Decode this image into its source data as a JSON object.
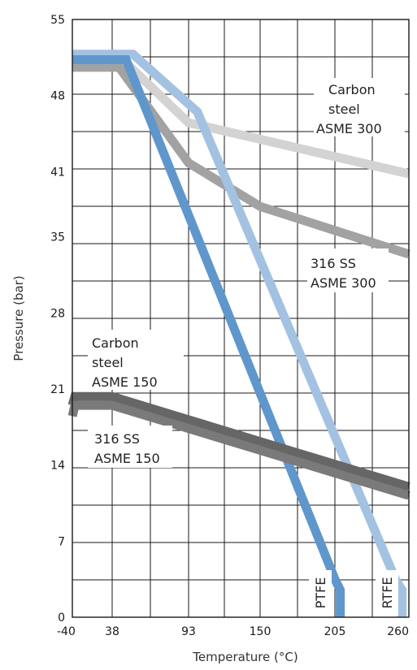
{
  "chart_data": {
    "type": "line",
    "xlabel": "Temperature (°C)",
    "ylabel": "Pressure (bar)",
    "x_ticks": [
      "-40",
      "38",
      "93",
      "150",
      "205",
      "260"
    ],
    "y_ticks": [
      "0",
      "7",
      "14",
      "21",
      "28",
      "35",
      "41",
      "48",
      "55"
    ],
    "xlim": [
      -40,
      260
    ],
    "ylim": [
      0,
      55
    ],
    "grid": true,
    "series": [
      {
        "name": "Carbon steel ASME 300",
        "color": "#d3d3d3",
        "points": [
          [
            -40,
            51
          ],
          [
            48,
            51
          ],
          [
            93,
            45.5
          ],
          [
            260,
            40.8
          ]
        ]
      },
      {
        "name": "316 SS ASME 300",
        "color": "#a2a2a2",
        "points": [
          [
            -40,
            50.6
          ],
          [
            43,
            50.6
          ],
          [
            93,
            41.8
          ],
          [
            150,
            37.8
          ],
          [
            260,
            33.4
          ]
        ]
      },
      {
        "name": "RTFE",
        "color": "#a3c2e2",
        "points": [
          [
            -40,
            51.8
          ],
          [
            53,
            51.8
          ],
          [
            100,
            46.5
          ],
          [
            250,
            3.5
          ],
          [
            255,
            2.5
          ],
          [
            255,
            0
          ]
        ]
      },
      {
        "name": "PTFE",
        "color": "#5f97cc",
        "points": [
          [
            -40,
            51.3
          ],
          [
            48,
            51.3
          ],
          [
            205,
            3.5
          ],
          [
            209,
            2.5
          ],
          [
            209,
            0
          ]
        ]
      },
      {
        "name": "Carbon steel ASME 150",
        "color": "#666666",
        "points": [
          [
            -40,
            19.5
          ],
          [
            -35,
            20.3
          ],
          [
            38,
            20.3
          ],
          [
            260,
            12
          ]
        ]
      },
      {
        "name": "316 SS ASME 150",
        "color": "#7a7a7a",
        "points": [
          [
            -40,
            18.5
          ],
          [
            -35,
            19.5
          ],
          [
            38,
            19.5
          ],
          [
            260,
            11.2
          ]
        ]
      }
    ],
    "annotations": {
      "cs300": [
        "Carbon",
        "steel",
        "ASME 300"
      ],
      "ss300": [
        "316 SS",
        "ASME 300"
      ],
      "cs150": [
        "Carbon",
        "steel",
        "ASME 150"
      ],
      "ss150": [
        "316 SS",
        "ASME 150"
      ],
      "ptfe": "PTFE",
      "rtfe": "RTFE"
    }
  }
}
